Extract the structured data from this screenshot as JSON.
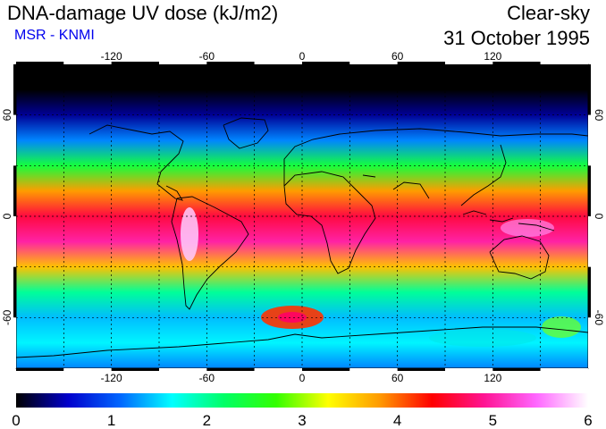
{
  "header": {
    "title": "DNA-damage UV dose (kJ/m2)",
    "credit": "MSR - KNMI",
    "mode": "Clear-sky",
    "date": "31 October 1995"
  },
  "map": {
    "projection": "equirectangular",
    "lon_range": [
      -180,
      180
    ],
    "lat_range": [
      -90,
      90
    ],
    "lon_tick_labels": [
      "-120",
      "-60",
      "0",
      "60",
      "120"
    ],
    "lon_ticks": [
      -120,
      -60,
      0,
      60,
      120
    ],
    "lat_tick_labels": [
      "60",
      "0",
      "-60"
    ],
    "lat_ticks": [
      60,
      0,
      -60
    ],
    "grid": "dashed every 30 degrees",
    "coastlines": true
  },
  "colorbar": {
    "min": 0,
    "max": 6,
    "tick_labels": [
      "0",
      "1",
      "2",
      "3",
      "4",
      "5",
      "6"
    ],
    "colors": [
      "#000000",
      "#0000cc",
      "#0066ff",
      "#00ffff",
      "#00ff66",
      "#33ff00",
      "#ffff00",
      "#ff9900",
      "#ff0000",
      "#ff1493",
      "#ff66ff",
      "#ffffff"
    ]
  },
  "field_profile": {
    "lat": [
      90,
      75,
      60,
      45,
      30,
      15,
      0,
      -15,
      -30,
      -45,
      -60,
      -75,
      -90
    ],
    "dose": [
      0.0,
      0.0,
      0.4,
      1.2,
      2.4,
      3.8,
      4.6,
      5.0,
      3.6,
      2.0,
      1.4,
      1.6,
      1.2
    ]
  }
}
